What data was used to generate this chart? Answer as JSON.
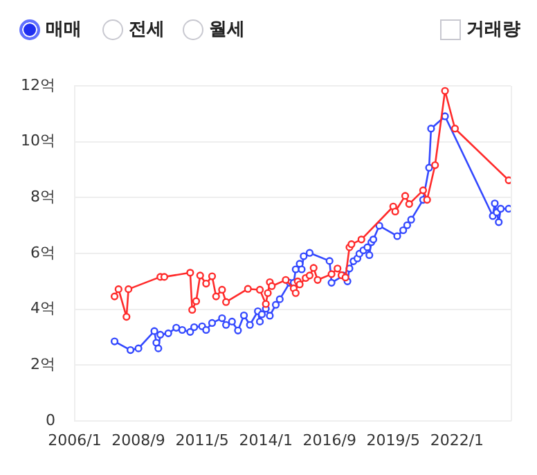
{
  "chart_data": {
    "type": "line",
    "annotations": [
      "매매",
      "전세",
      "월세",
      "거래량"
    ],
    "xlim": [
      "2006-01",
      "2024-04"
    ],
    "xticks": [
      {
        "value": "2006-01",
        "label": "2006/1"
      },
      {
        "value": "2008-09",
        "label": "2008/9"
      },
      {
        "value": "2011-05",
        "label": "2011/5"
      },
      {
        "value": "2014-01",
        "label": "2014/1"
      },
      {
        "value": "2016-09",
        "label": "2016/9"
      },
      {
        "value": "2019-05",
        "label": "2019/5"
      },
      {
        "value": "2022-01",
        "label": "2022/1"
      }
    ],
    "ylim": [
      0,
      12
    ],
    "yticks": [
      0,
      {
        "value": 2,
        "label": "2억"
      },
      {
        "value": 4,
        "label": "4억"
      },
      {
        "value": 6,
        "label": "6억"
      },
      {
        "value": 8,
        "label": "8억"
      },
      {
        "value": 10,
        "label": "10억"
      },
      {
        "value": 12,
        "label": "12억"
      }
    ],
    "grid": "y",
    "legend": false,
    "marker": "circle",
    "line_style": "solid",
    "series": [
      {
        "color": "#ff2a2a",
        "x": [
          "2007-09",
          "2007-11",
          "2008-03",
          "2008-04",
          "2009-08",
          "2009-10",
          "2010-11",
          "2010-12",
          "2011-02",
          "2011-04",
          "2011-07",
          "2011-10",
          "2011-12",
          "2012-03",
          "2012-05",
          "2013-04",
          "2013-10",
          "2014-01",
          "2014-02",
          "2014-03",
          "2014-04",
          "2014-11",
          "2015-03",
          "2015-04",
          "2015-05",
          "2015-06",
          "2015-09",
          "2015-11",
          "2016-01",
          "2016-03",
          "2016-10",
          "2017-01",
          "2017-03",
          "2017-05",
          "2017-07",
          "2017-08",
          "2018-01",
          "2019-05",
          "2019-06",
          "2019-11",
          "2020-01",
          "2020-08",
          "2020-10",
          "2021-02",
          "2021-07",
          "2021-12",
          "2024-03"
        ],
        "values": [
          4.46,
          4.72,
          3.73,
          4.72,
          5.16,
          5.16,
          5.31,
          3.98,
          4.29,
          5.21,
          4.92,
          5.18,
          4.46,
          4.7,
          4.26,
          4.73,
          4.7,
          4.19,
          4.58,
          4.97,
          4.83,
          5.05,
          4.75,
          4.58,
          5.0,
          4.89,
          5.12,
          5.21,
          5.48,
          5.05,
          5.26,
          5.46,
          5.22,
          5.14,
          6.22,
          6.33,
          6.5,
          7.68,
          7.5,
          8.06,
          7.77,
          8.26,
          7.92,
          9.16,
          11.82,
          10.47,
          8.62
        ]
      },
      {
        "color": "#3348ff",
        "x": [
          "2007-09",
          "2008-05",
          "2008-09",
          "2009-05",
          "2009-06",
          "2009-07",
          "2009-08",
          "2009-12",
          "2010-04",
          "2010-07",
          "2010-11",
          "2011-01",
          "2011-05",
          "2011-07",
          "2011-10",
          "2012-03",
          "2012-05",
          "2012-08",
          "2012-11",
          "2013-02",
          "2013-05",
          "2013-09",
          "2013-10",
          "2013-11",
          "2014-01",
          "2014-03",
          "2014-06",
          "2014-08",
          "2015-01",
          "2015-03",
          "2015-04",
          "2015-06",
          "2015-07",
          "2015-08",
          "2015-11",
          "2016-09",
          "2016-10",
          "2017-04",
          "2017-06",
          "2017-07",
          "2017-09",
          "2017-11",
          "2017-12",
          "2018-02",
          "2018-04",
          "2018-05",
          "2018-06",
          "2018-07",
          "2018-10",
          "2019-07",
          "2019-10",
          "2019-12",
          "2020-02",
          "2020-08",
          "2020-11",
          "2020-12",
          "2021-07",
          "2023-07",
          "2023-08",
          "2023-09",
          "2023-10",
          "2023-11",
          "2024-03"
        ],
        "values": [
          2.85,
          2.54,
          2.6,
          3.22,
          2.8,
          2.6,
          3.09,
          3.14,
          3.34,
          3.26,
          3.19,
          3.36,
          3.39,
          3.26,
          3.51,
          3.68,
          3.44,
          3.56,
          3.24,
          3.78,
          3.44,
          3.93,
          3.56,
          3.82,
          4.02,
          3.77,
          4.16,
          4.36,
          4.95,
          4.95,
          5.43,
          5.63,
          5.43,
          5.9,
          6.02,
          5.73,
          4.95,
          5.21,
          5.0,
          5.46,
          5.72,
          5.82,
          5.99,
          6.11,
          6.22,
          5.94,
          6.4,
          6.5,
          6.99,
          6.62,
          6.83,
          7.01,
          7.21,
          7.92,
          9.07,
          10.47,
          10.91,
          7.34,
          7.79,
          7.47,
          7.12,
          7.6,
          7.6
        ]
      }
    ]
  }
}
